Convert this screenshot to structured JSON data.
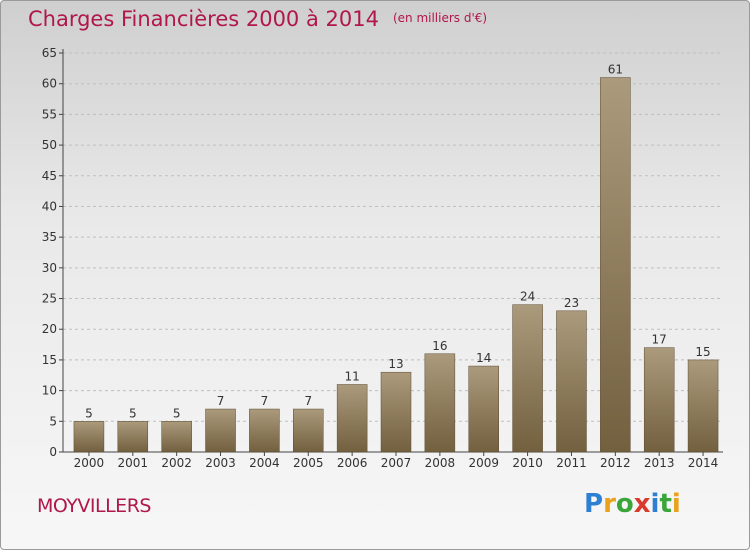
{
  "header": {
    "title": "Charges Financières 2000 à 2014",
    "subtitle": "(en milliers d'€)"
  },
  "footer": {
    "place": "MOYVILLERS",
    "logo_letters": [
      "P",
      "r",
      "o",
      "x",
      "i",
      "t",
      "i"
    ],
    "logo_colors": [
      "#2d7fd3",
      "#e8a21c",
      "#3aa63a",
      "#d93a2b",
      "#2d7fd3",
      "#3aa63a",
      "#e8a21c"
    ]
  },
  "colors": {
    "title": "#b0174a",
    "bar_top": "#ab9a7c",
    "bar_bottom": "#72603f",
    "axis": "#444444",
    "grid": "#bfbfbf"
  },
  "chart_data": {
    "type": "bar",
    "categories": [
      "2000",
      "2001",
      "2002",
      "2003",
      "2004",
      "2005",
      "2006",
      "2007",
      "2008",
      "2009",
      "2010",
      "2011",
      "2012",
      "2013",
      "2014"
    ],
    "values": [
      5,
      5,
      5,
      7,
      7,
      7,
      11,
      13,
      16,
      14,
      24,
      23,
      61,
      17,
      15
    ],
    "data_labels": [
      "5",
      "5",
      "5",
      "7",
      "7",
      "7",
      "11",
      "13",
      "16",
      "14",
      "24",
      "23",
      "61",
      "17",
      "15"
    ],
    "yticks": [
      0,
      5,
      10,
      15,
      20,
      25,
      30,
      35,
      40,
      45,
      50,
      55,
      60,
      65
    ],
    "ylim": [
      0,
      65
    ],
    "grid": "horizontal dashed",
    "title": "Charges Financières 2000 à 2014",
    "xlabel": "",
    "ylabel": ""
  }
}
